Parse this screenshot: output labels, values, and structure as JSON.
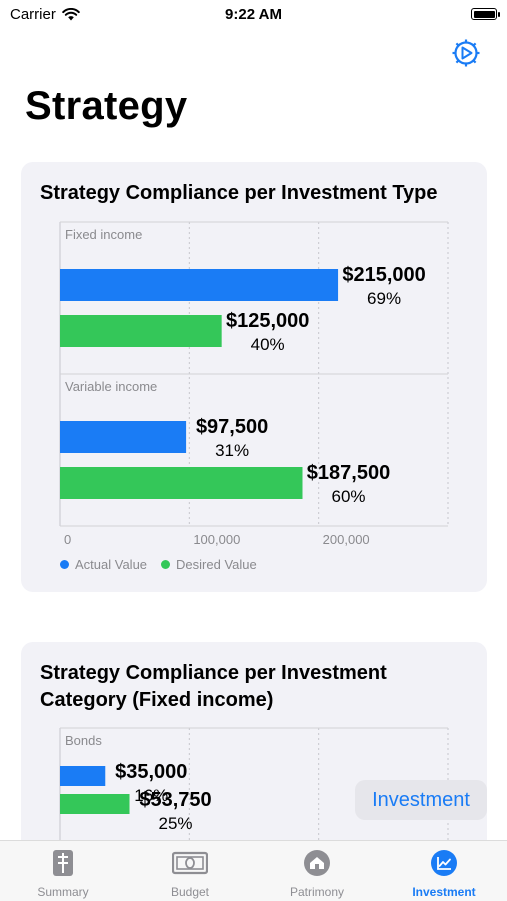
{
  "status": {
    "carrier": "Carrier",
    "time": "9:22 AM"
  },
  "header": {
    "title": "Strategy",
    "settings_icon": "gear-icon"
  },
  "colors": {
    "actual": "#1a7cf5",
    "desired": "#34c759",
    "accent": "#1a7cf5"
  },
  "chart1": {
    "title": "Strategy Compliance per Investment Type",
    "chart_data": {
      "type": "bar",
      "orientation": "horizontal",
      "x_ticks": [
        "0",
        "100,000",
        "200,000"
      ],
      "xlim": [
        0,
        300000
      ],
      "grid": true,
      "legend_position": "bottom-left",
      "legend": [
        "Actual Value",
        "Desired Value"
      ],
      "groups": [
        {
          "name": "Fixed income",
          "bars": [
            {
              "series": "Actual Value",
              "value": 215000,
              "value_label": "$215,000",
              "percent_label": "69%"
            },
            {
              "series": "Desired Value",
              "value": 125000,
              "value_label": "$125,000",
              "percent_label": "40%"
            }
          ]
        },
        {
          "name": "Variable income",
          "bars": [
            {
              "series": "Actual Value",
              "value": 97500,
              "value_label": "$97,500",
              "percent_label": "31%"
            },
            {
              "series": "Desired Value",
              "value": 187500,
              "value_label": "$187,500",
              "percent_label": "60%"
            }
          ]
        }
      ]
    }
  },
  "chart2": {
    "title": "Strategy Compliance per Investment Category (Fixed income)",
    "chart_data": {
      "type": "bar",
      "orientation": "horizontal",
      "xlim": [
        0,
        300000
      ],
      "grid": true,
      "groups": [
        {
          "name": "Bonds",
          "bars": [
            {
              "series": "Actual Value",
              "value": 35000,
              "value_label": "$35,000",
              "percent_label": "16%"
            },
            {
              "series": "Desired Value",
              "value": 53750,
              "value_label": "$53,750",
              "percent_label": "25%"
            }
          ]
        }
      ]
    }
  },
  "investment_chip": "Investment",
  "tabs": [
    {
      "label": "Summary",
      "icon": "summary-icon",
      "active": false
    },
    {
      "label": "Budget",
      "icon": "banknote-icon",
      "active": false
    },
    {
      "label": "Patrimony",
      "icon": "house-icon",
      "active": false
    },
    {
      "label": "Investment",
      "icon": "chart-line-icon",
      "active": true
    }
  ]
}
